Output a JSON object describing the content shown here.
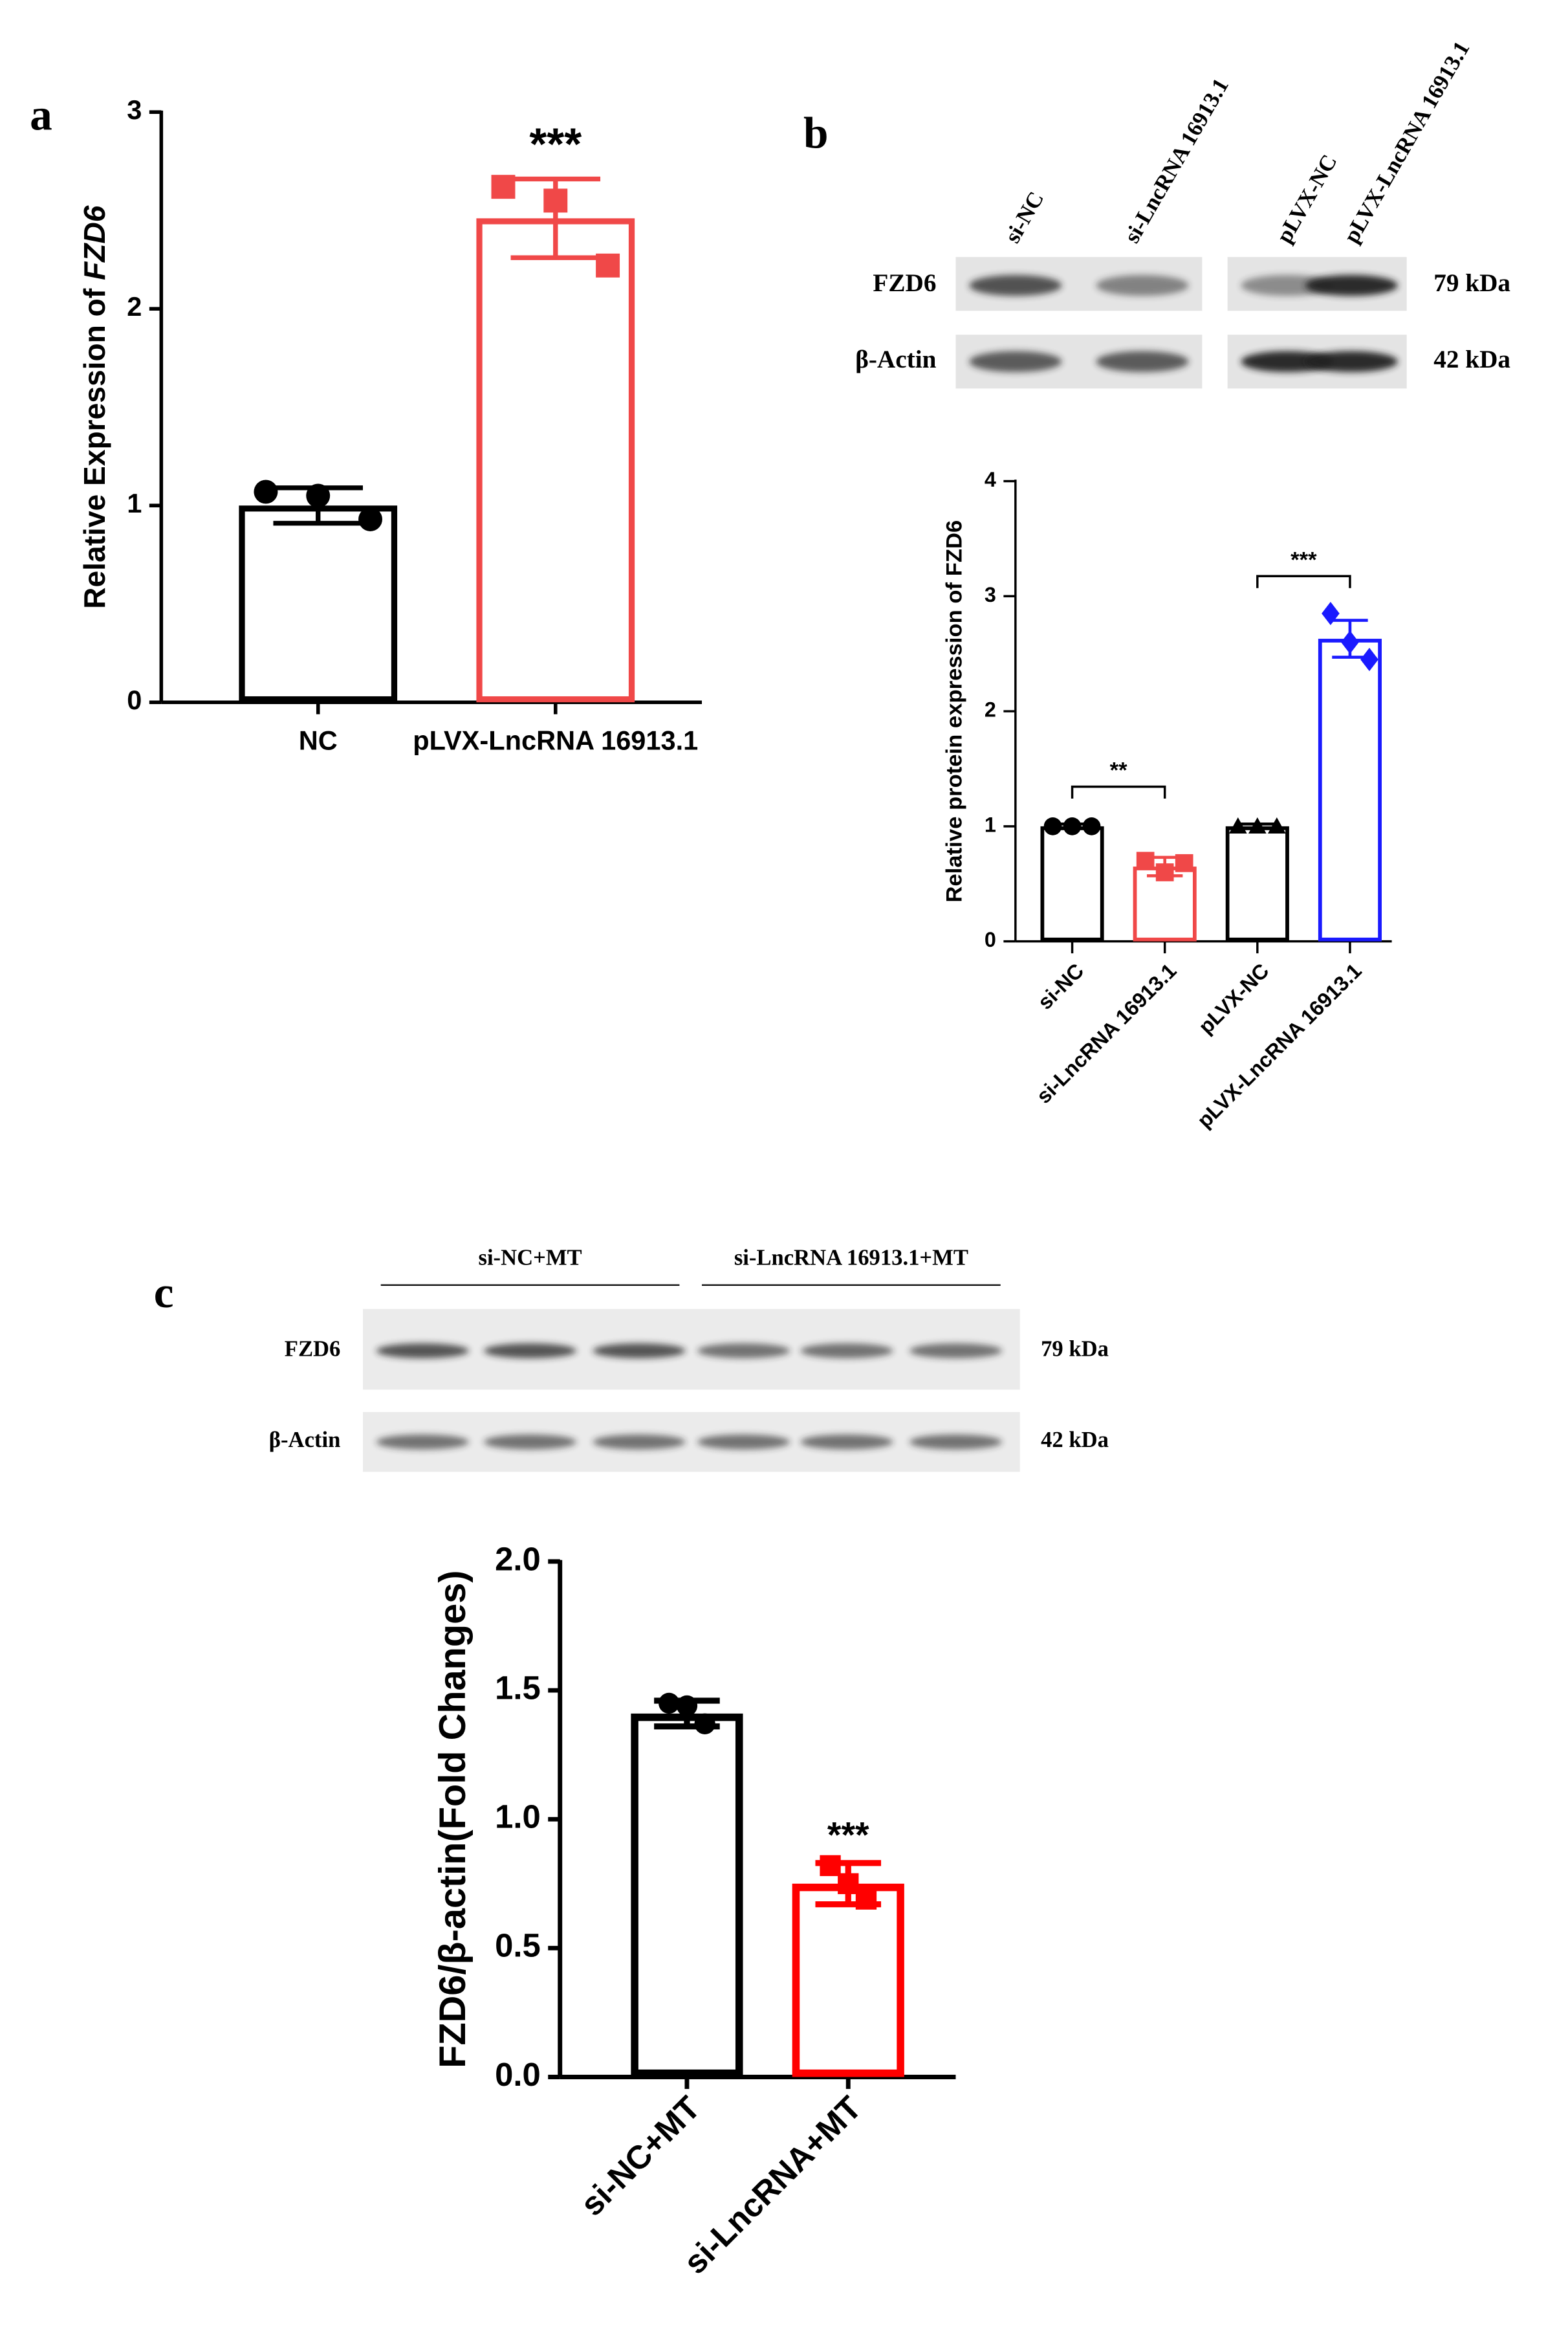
{
  "panel_labels": [
    "a",
    "b",
    "c"
  ],
  "chart_data": [
    {
      "type": "bar",
      "y_label": "Relative Expression of ",
      "y_label_italic": "FZD6",
      "categories": [
        "NC",
        "pLVX-LncRNA 16913.1"
      ],
      "values": [
        1.0,
        2.46
      ],
      "errors": [
        0.09,
        0.2
      ],
      "points": [
        [
          1.07,
          1.05,
          0.93
        ],
        [
          2.62,
          2.55,
          2.22
        ]
      ],
      "markers": [
        "circle",
        "square"
      ],
      "colors": [
        "#000000",
        "#f04848"
      ],
      "ylim": [
        0,
        3
      ],
      "yticks": [
        0,
        1,
        2,
        3
      ],
      "annotations": [
        {
          "text": "***",
          "category": 1
        }
      ]
    },
    {
      "type": "bar",
      "y_label": "Relative protein expression of FZD6",
      "categories": [
        "si-NC",
        "si-LncRNA 16913.1",
        "pLVX-NC",
        "pLVX-LncRNA 16913.1"
      ],
      "values": [
        1.0,
        0.65,
        1.0,
        2.63
      ],
      "errors": [
        0.02,
        0.08,
        0.02,
        0.16
      ],
      "points": [
        [
          1.0,
          1.0,
          1.0
        ],
        [
          0.7,
          0.6,
          0.68
        ],
        [
          1.0,
          1.0,
          1.0
        ],
        [
          2.85,
          2.6,
          2.45
        ]
      ],
      "markers": [
        "circle",
        "square",
        "triangle",
        "diamond"
      ],
      "colors": [
        "#000000",
        "#f04848",
        "#000000",
        "#1a1aff"
      ],
      "ylim": [
        0,
        4
      ],
      "yticks": [
        0,
        1,
        2,
        3,
        4
      ],
      "brackets": [
        {
          "text": "**",
          "between": [
            0,
            1
          ]
        },
        {
          "text": "***",
          "between": [
            2,
            3
          ]
        }
      ]
    },
    {
      "type": "bar",
      "y_label": "FZD6/β-actin(Fold Changes)",
      "categories": [
        "si-NC+MT",
        "si-LncRNA+MT"
      ],
      "values": [
        1.41,
        0.75
      ],
      "errors": [
        0.05,
        0.08
      ],
      "points": [
        [
          1.45,
          1.44,
          1.37
        ],
        [
          0.82,
          0.75,
          0.69
        ]
      ],
      "markers": [
        "circle",
        "square"
      ],
      "colors": [
        "#000000",
        "#ff0000"
      ],
      "ylim": [
        0,
        2
      ],
      "yticks": [
        {
          "value": 0,
          "label": "0.0"
        },
        {
          "value": 0.5,
          "label": "0.5"
        },
        {
          "value": 1,
          "label": "1.0"
        },
        {
          "value": 1.5,
          "label": "1.5"
        },
        {
          "value": 2,
          "label": "2.0"
        }
      ],
      "annotations": [
        {
          "text": "***",
          "category": 1
        }
      ]
    }
  ],
  "blots": [
    {
      "lanes": [
        "si-NC",
        "si-LncRNA 16913.1",
        "pLVX-NC",
        "pLVX-LncRNA 16913.1"
      ],
      "rows": [
        {
          "protein": "FZD6",
          "size": "79 kDa"
        },
        {
          "protein": "β-Actin",
          "size": "42 kDa"
        }
      ]
    },
    {
      "groups": [
        "si-NC+MT",
        "si-LncRNA 16913.1+MT"
      ],
      "rows": [
        {
          "protein": "FZD6",
          "size": "79 kDa"
        },
        {
          "protein": "β-Actin",
          "size": "42 kDa"
        }
      ]
    }
  ]
}
